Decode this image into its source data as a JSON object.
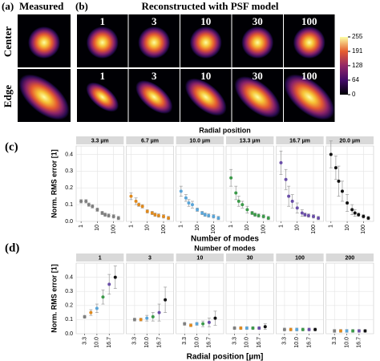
{
  "panels": {
    "a": "(a)",
    "a_title": "Measured",
    "b": "(b)",
    "b_title": "Reconstructed with PSF model",
    "rows": [
      "Center",
      "Edge"
    ]
  },
  "images": {
    "columns": [
      "1",
      "3",
      "10",
      "30",
      "100"
    ]
  },
  "colorbar": {
    "clim": [
      0,
      255
    ],
    "ticks": [
      0,
      64,
      128,
      191,
      255
    ]
  },
  "chart_data": [
    {
      "type": "scatter",
      "panel": "(c)",
      "title": "Radial position",
      "xlabel": "Number of modes",
      "ylabel": "Norm. RMS error [1]",
      "xscale": "log",
      "xlim": [
        0.7,
        300
      ],
      "xticks": [
        1,
        10,
        100
      ],
      "ylim": [
        0,
        0.45
      ],
      "yticks": [
        {
          "value": 0,
          "label": "0.0"
        },
        0.1,
        0.2,
        0.3,
        0.4
      ],
      "grid": true,
      "color_by": "facet",
      "colors": [
        "#7f7f7f",
        "#e08a1e",
        "#5aa5d8",
        "#3c9a4a",
        "#6a4ea8",
        "#111111"
      ],
      "facets": [
        {
          "name": "3.3 µm",
          "x": [
            1,
            2,
            3,
            5,
            10,
            20,
            30,
            50,
            100,
            200
          ],
          "values": [
            0.12,
            0.12,
            0.1,
            0.09,
            0.07,
            0.05,
            0.04,
            0.035,
            0.03,
            0.02
          ],
          "errors": [
            0.01,
            0.01,
            0.01,
            0.01,
            0.01,
            0.01,
            0.01,
            0.01,
            0.01,
            0.01
          ]
        },
        {
          "name": "6.7 µm",
          "x": [
            1,
            2,
            3,
            5,
            10,
            20,
            30,
            50,
            100,
            200
          ],
          "values": [
            0.15,
            0.12,
            0.1,
            0.09,
            0.06,
            0.05,
            0.04,
            0.035,
            0.03,
            0.02
          ],
          "errors": [
            0.02,
            0.02,
            0.01,
            0.01,
            0.01,
            0.01,
            0.01,
            0.01,
            0.01,
            0.01
          ]
        },
        {
          "name": "10.0 µm",
          "x": [
            1,
            2,
            3,
            5,
            10,
            20,
            30,
            50,
            100,
            200
          ],
          "values": [
            0.18,
            0.14,
            0.11,
            0.1,
            0.07,
            0.05,
            0.04,
            0.035,
            0.03,
            0.02
          ],
          "errors": [
            0.03,
            0.02,
            0.02,
            0.02,
            0.01,
            0.01,
            0.01,
            0.01,
            0.01,
            0.01
          ]
        },
        {
          "name": "13.3 µm",
          "x": [
            1,
            2,
            3,
            5,
            10,
            20,
            30,
            50,
            100,
            200
          ],
          "values": [
            0.26,
            0.17,
            0.12,
            0.1,
            0.07,
            0.05,
            0.04,
            0.035,
            0.03,
            0.02
          ],
          "errors": [
            0.05,
            0.04,
            0.03,
            0.02,
            0.02,
            0.01,
            0.01,
            0.01,
            0.01,
            0.01
          ]
        },
        {
          "name": "16.7 µm",
          "x": [
            1,
            2,
            3,
            5,
            10,
            20,
            30,
            50,
            100,
            200
          ],
          "values": [
            0.35,
            0.25,
            0.15,
            0.12,
            0.08,
            0.05,
            0.04,
            0.035,
            0.03,
            0.02
          ],
          "errors": [
            0.07,
            0.06,
            0.06,
            0.04,
            0.03,
            0.02,
            0.01,
            0.01,
            0.01,
            0.01
          ]
        },
        {
          "name": "20.0 µm",
          "x": [
            1,
            2,
            3,
            5,
            10,
            20,
            30,
            50,
            100,
            200
          ],
          "values": [
            0.4,
            0.32,
            0.24,
            0.18,
            0.11,
            0.07,
            0.05,
            0.04,
            0.03,
            0.02
          ],
          "errors": [
            0.08,
            0.07,
            0.09,
            0.06,
            0.05,
            0.03,
            0.02,
            0.01,
            0.01,
            0.01
          ]
        }
      ]
    },
    {
      "type": "scatter",
      "panel": "(d)",
      "title": "Number of modes",
      "xlabel": "Radial position [µm]",
      "ylabel": "Norm. RMS error [1]",
      "xscale": "linear",
      "xlim": [
        0,
        23.3
      ],
      "xticks": [
        3.3,
        {
          "value": 10,
          "label": "10.0"
        },
        16.7
      ],
      "ylim": [
        0,
        0.5
      ],
      "yticks": [
        {
          "value": 0,
          "label": "0.0"
        },
        0.1,
        0.2,
        0.3,
        0.4
      ],
      "grid": true,
      "color_by": "point",
      "colors": [
        "#7f7f7f",
        "#e08a1e",
        "#5aa5d8",
        "#3c9a4a",
        "#6a4ea8",
        "#111111"
      ],
      "facets": [
        {
          "name": "1",
          "x": [
            3.3,
            6.7,
            10,
            13.3,
            16.7,
            20
          ],
          "values": [
            0.12,
            0.15,
            0.18,
            0.26,
            0.35,
            0.4
          ],
          "errors": [
            0.01,
            0.02,
            0.03,
            0.05,
            0.07,
            0.08
          ]
        },
        {
          "name": "3",
          "x": [
            3.3,
            6.7,
            10,
            13.3,
            16.7,
            20
          ],
          "values": [
            0.1,
            0.1,
            0.11,
            0.12,
            0.15,
            0.24
          ],
          "errors": [
            0.01,
            0.01,
            0.02,
            0.03,
            0.06,
            0.09
          ]
        },
        {
          "name": "10",
          "x": [
            3.3,
            6.7,
            10,
            13.3,
            16.7,
            20
          ],
          "values": [
            0.07,
            0.06,
            0.07,
            0.07,
            0.08,
            0.11
          ],
          "errors": [
            0.01,
            0.01,
            0.01,
            0.02,
            0.03,
            0.05
          ]
        },
        {
          "name": "30",
          "x": [
            3.3,
            6.7,
            10,
            13.3,
            16.7,
            20
          ],
          "values": [
            0.04,
            0.04,
            0.04,
            0.04,
            0.04,
            0.05
          ],
          "errors": [
            0.01,
            0.01,
            0.01,
            0.01,
            0.01,
            0.02
          ]
        },
        {
          "name": "100",
          "x": [
            3.3,
            6.7,
            10,
            13.3,
            16.7,
            20
          ],
          "values": [
            0.03,
            0.03,
            0.03,
            0.03,
            0.03,
            0.03
          ],
          "errors": [
            0.01,
            0.01,
            0.01,
            0.01,
            0.01,
            0.01
          ]
        },
        {
          "name": "200",
          "x": [
            3.3,
            6.7,
            10,
            13.3,
            16.7,
            20
          ],
          "values": [
            0.02,
            0.02,
            0.02,
            0.02,
            0.02,
            0.02
          ],
          "errors": [
            0.01,
            0.01,
            0.01,
            0.01,
            0.01,
            0.01
          ]
        }
      ]
    }
  ]
}
